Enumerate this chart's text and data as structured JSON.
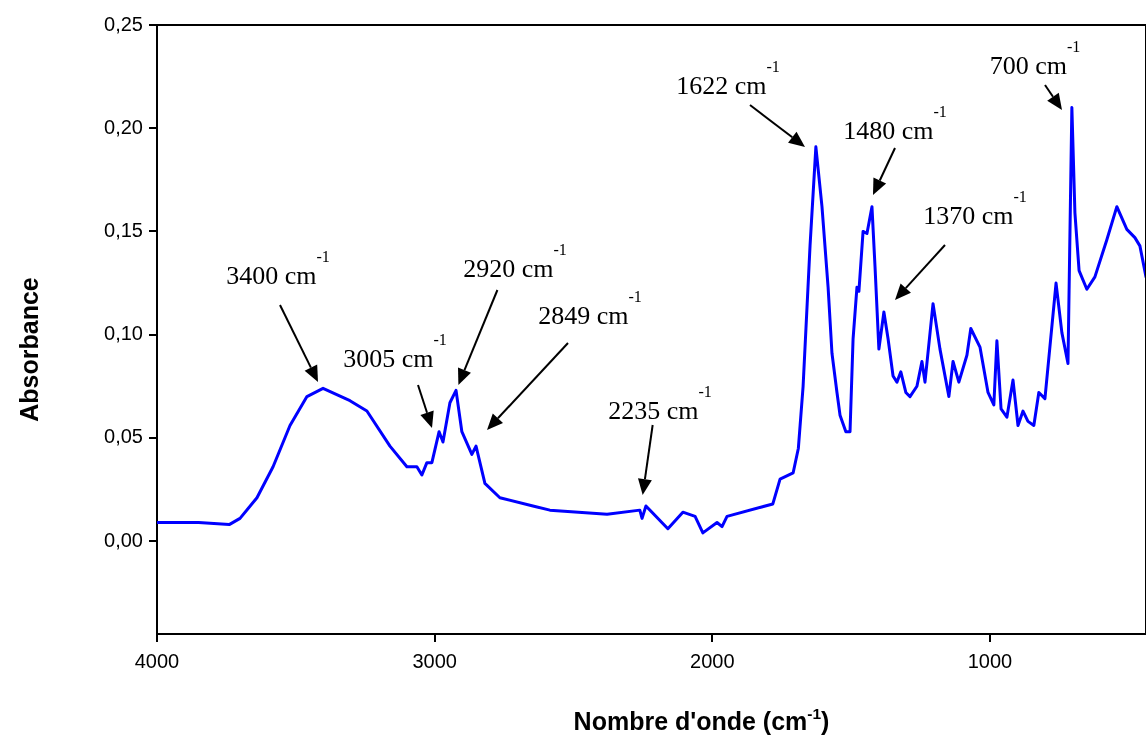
{
  "chart_data": {
    "type": "line",
    "xlabel": "Nombre d'onde (cm$^{-1}$)",
    "ylabel": "Absorbance",
    "xlim": [
      4000,
      438
    ],
    "xticks": [
      4000,
      3000,
      2000,
      1000
    ],
    "ylim": [
      -0.045,
      0.25
    ],
    "yticks": [
      {
        "value": 0,
        "label": "0,00"
      },
      {
        "value": 0.05,
        "label": "0,05"
      },
      {
        "value": 0.1,
        "label": "0,10"
      },
      {
        "value": 0.15,
        "label": "0,15"
      },
      {
        "value": 0.2,
        "label": "0,20"
      },
      {
        "value": 0.25,
        "label": "0,25"
      }
    ],
    "grid": false,
    "legend": false,
    "line_style": "solid",
    "series": [
      {
        "color": "#0000ff",
        "x": [
          4000,
          3850,
          3740,
          3701,
          3640,
          3582,
          3521,
          3460,
          3402,
          3305,
          3244,
          3161,
          3100,
          3064,
          3046,
          3028,
          3010,
          2984,
          2970,
          2945,
          2923,
          2902,
          2866,
          2851,
          2819,
          2765,
          2646,
          2585,
          2379,
          2261,
          2253,
          2239,
          2160,
          2106,
          2062,
          2034,
          1983,
          1965,
          1947,
          1782,
          1756,
          1709,
          1690,
          1673,
          1648,
          1627,
          1605,
          1583,
          1569,
          1551,
          1540,
          1519,
          1504,
          1493,
          1479,
          1472,
          1457,
          1443,
          1425,
          1414,
          1400,
          1382,
          1367,
          1349,
          1335,
          1321,
          1303,
          1288,
          1263,
          1245,
          1234,
          1205,
          1180,
          1148,
          1133,
          1112,
          1083,
          1069,
          1036,
          1007,
          986,
          975,
          960,
          939,
          917,
          899,
          881,
          863,
          842,
          824,
          802,
          762,
          741,
          719,
          705,
          694,
          679,
          651,
          622,
          579,
          543,
          507,
          478,
          460,
          438
        ],
        "values": [
          0.009,
          0.009,
          0.008,
          0.011,
          0.021,
          0.036,
          0.056,
          0.07,
          0.074,
          0.068,
          0.063,
          0.046,
          0.036,
          0.036,
          0.032,
          0.038,
          0.038,
          0.053,
          0.048,
          0.067,
          0.073,
          0.053,
          0.042,
          0.046,
          0.028,
          0.021,
          0.017,
          0.015,
          0.013,
          0.015,
          0.011,
          0.017,
          0.006,
          0.014,
          0.012,
          0.004,
          0.009,
          0.007,
          0.012,
          0.018,
          0.03,
          0.033,
          0.045,
          0.075,
          0.143,
          0.191,
          0.162,
          0.123,
          0.091,
          0.072,
          0.061,
          0.053,
          0.053,
          0.098,
          0.123,
          0.121,
          0.15,
          0.149,
          0.162,
          0.133,
          0.093,
          0.111,
          0.098,
          0.08,
          0.077,
          0.082,
          0.072,
          0.07,
          0.075,
          0.087,
          0.077,
          0.115,
          0.093,
          0.07,
          0.087,
          0.077,
          0.09,
          0.103,
          0.094,
          0.072,
          0.066,
          0.097,
          0.064,
          0.06,
          0.078,
          0.056,
          0.063,
          0.058,
          0.056,
          0.072,
          0.069,
          0.125,
          0.101,
          0.086,
          0.21,
          0.159,
          0.131,
          0.122,
          0.128,
          0.146,
          0.162,
          0.151,
          0.147,
          0.143,
          0.128
        ]
      }
    ],
    "annotations": [
      "3400 cm$^{-1}$",
      "3005 cm$^{-1}$",
      "2920 cm$^{-1}$",
      "2849 cm$^{-1}$",
      "2235 cm$^{-1}$",
      "1622 cm$^{-1}$",
      "1480 cm$^{-1}$",
      "1370 cm$^{-1}$",
      "700 cm$^{-1}$"
    ]
  }
}
